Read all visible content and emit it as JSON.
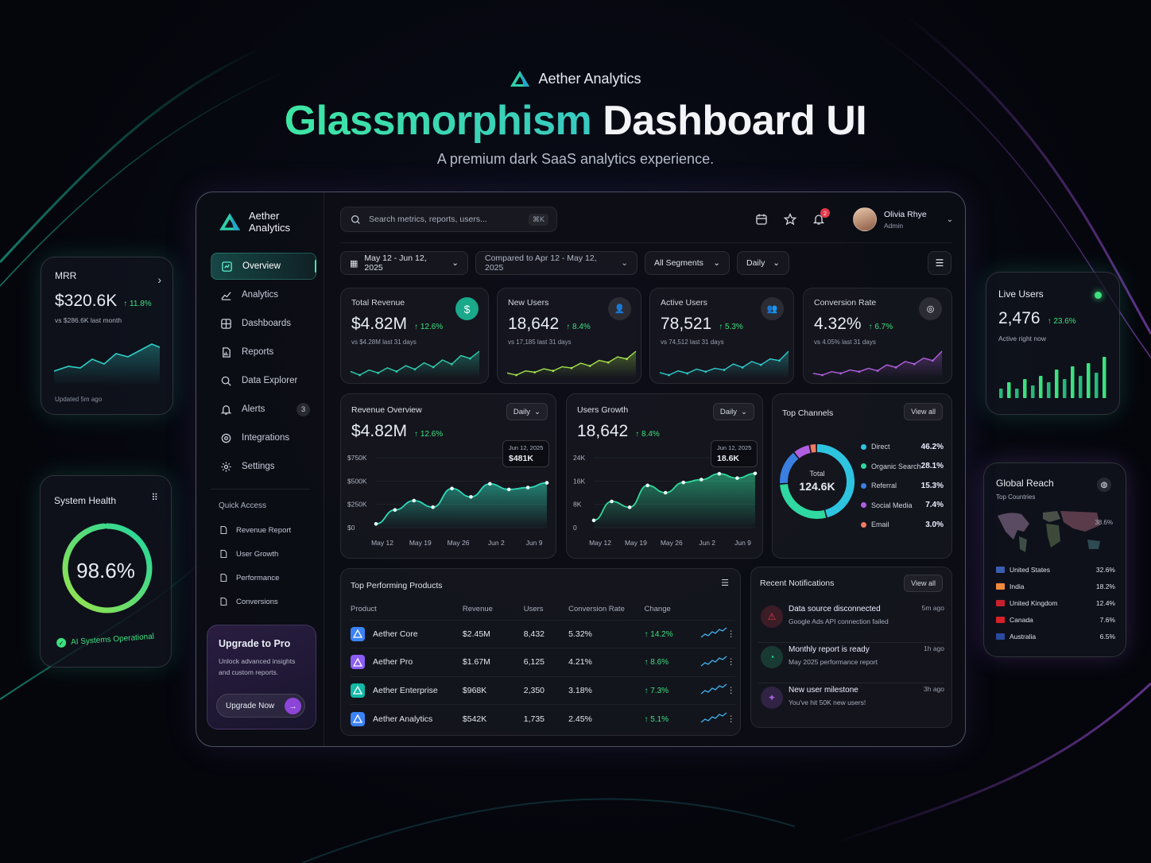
{
  "hero": {
    "brand": "Aether Analytics",
    "title_green": "Glassmorphism",
    "title_white": "Dashboard UI",
    "subtitle": "A premium dark SaaS analytics experience."
  },
  "colors": {
    "accent_green": "#3ee6a3",
    "accent_teal": "#38c9c1",
    "accent_purple": "#8d44d8",
    "positive": "#3ee07f",
    "danger": "#e23a4a"
  },
  "sidebar": {
    "brand": "Aether Analytics",
    "brand_line1": "Aether",
    "brand_line2": "Analytics",
    "items": [
      {
        "label": "Overview",
        "icon": "chart-icon",
        "active": true
      },
      {
        "label": "Analytics",
        "icon": "trend-icon"
      },
      {
        "label": "Dashboards",
        "icon": "grid-icon"
      },
      {
        "label": "Reports",
        "icon": "report-icon"
      },
      {
        "label": "Data Explorer",
        "icon": "search-icon"
      },
      {
        "label": "Alerts",
        "icon": "bell-icon",
        "badge": "3"
      },
      {
        "label": "Integrations",
        "icon": "puzzle-icon"
      },
      {
        "label": "Settings",
        "icon": "gear-icon"
      }
    ],
    "quick_access_title": "Quick Access",
    "quick_access": [
      "Revenue Report",
      "User Growth",
      "Performance",
      "Conversions"
    ],
    "upgrade": {
      "title": "Upgrade to Pro",
      "text": "Unlock advanced insights and custom reports.",
      "button": "Upgrade Now"
    }
  },
  "header": {
    "search_placeholder": "Search metrics, reports, users...",
    "shortcut": "⌘K",
    "notification_count": "2",
    "user_name": "Olivia Rhye",
    "user_role": "Admin"
  },
  "filters": {
    "date_range": "May 12 - Jun 12, 2025",
    "compare": "Compared to Apr 12 - May 12, 2025",
    "segment": "All Segments",
    "granularity": "Daily"
  },
  "kpis": [
    {
      "label": "Total Revenue",
      "value": "$4.82M",
      "change": "12.6%",
      "compare": "vs $4.28M last 31 days",
      "icon": "dollar-icon",
      "color": "#2fd0b0",
      "trend": [
        3,
        2.5,
        3.2,
        2.8,
        3.5,
        3,
        3.8,
        3.3,
        4.2,
        3.6,
        4.6,
        4,
        5.2,
        4.8,
        5.8
      ]
    },
    {
      "label": "New Users",
      "value": "18,642",
      "change": "8.4%",
      "compare": "vs 17,185 last 31 days",
      "icon": "user-icon",
      "color": "#a6e34a",
      "trend": [
        2.5,
        2.2,
        2.8,
        2.6,
        3.1,
        2.8,
        3.4,
        3.2,
        3.9,
        3.5,
        4.3,
        4,
        4.8,
        4.5,
        5.6
      ]
    },
    {
      "label": "Active Users",
      "value": "78,521",
      "change": "5.3%",
      "compare": "vs 74,512 last 31 days",
      "icon": "users-icon",
      "color": "#2fc9c9",
      "trend": [
        3,
        2.7,
        3.2,
        2.9,
        3.4,
        3.1,
        3.5,
        3.3,
        4,
        3.6,
        4.3,
        3.9,
        4.6,
        4.4,
        5.5
      ]
    },
    {
      "label": "Conversion Rate",
      "value": "4.32%",
      "change": "6.7%",
      "compare": "vs 4.05% last 31 days",
      "icon": "target-icon",
      "color": "#b25fe0",
      "trend": [
        2.8,
        2.6,
        3,
        2.8,
        3.2,
        3,
        3.4,
        3.1,
        3.8,
        3.5,
        4.2,
        3.9,
        4.6,
        4.3,
        5.4
      ]
    }
  ],
  "revenue_overview": {
    "title": "Revenue Overview",
    "value": "$4.82M",
    "change": "12.6%",
    "dropdown": "Daily",
    "tooltip_date": "Jun 12, 2025",
    "tooltip_value": "$481K",
    "y_ticks": [
      "$750K",
      "$500K",
      "$250K",
      "$0"
    ],
    "x_ticks": [
      "May 12",
      "May 19",
      "May 26",
      "Jun 2",
      "Jun 9"
    ]
  },
  "users_growth": {
    "title": "Users Growth",
    "value": "18,642",
    "change": "8.4%",
    "dropdown": "Daily",
    "tooltip_date": "Jun 12, 2025",
    "tooltip_value": "18.6K",
    "y_ticks": [
      "24K",
      "16K",
      "8K",
      "0"
    ],
    "x_ticks": [
      "May 12",
      "May 19",
      "May 26",
      "Jun 2",
      "Jun 9"
    ]
  },
  "chart_data": [
    {
      "type": "area",
      "title": "Revenue Overview",
      "x": [
        "May 12",
        "May 15",
        "May 19",
        "May 22",
        "May 26",
        "May 29",
        "Jun 2",
        "Jun 5",
        "Jun 9",
        "Jun 12"
      ],
      "values": [
        40,
        190,
        290,
        220,
        420,
        330,
        470,
        410,
        430,
        481
      ],
      "ylim": [
        0,
        750
      ],
      "ylabel": "",
      "xlabel": ""
    },
    {
      "type": "area",
      "title": "Users Growth",
      "x": [
        "May 12",
        "May 15",
        "May 19",
        "May 22",
        "May 26",
        "May 29",
        "Jun 2",
        "Jun 5",
        "Jun 9",
        "Jun 12"
      ],
      "values": [
        2.5,
        9,
        7,
        14.5,
        12,
        15.5,
        16.5,
        18.5,
        17,
        18.6
      ],
      "ylim": [
        0,
        24
      ],
      "ylabel": "",
      "xlabel": ""
    },
    {
      "type": "pie",
      "title": "Top Channels",
      "categories": [
        "Direct",
        "Organic Search",
        "Referral",
        "Social Media",
        "Email"
      ],
      "values": [
        46.2,
        28.1,
        15.3,
        7.4,
        3.0
      ]
    }
  ],
  "top_channels": {
    "title": "Top Channels",
    "view_all": "View all",
    "total_label": "Total",
    "total_value": "124.6K",
    "items": [
      {
        "name": "Direct",
        "pct": "46.2%",
        "color": "#2ec4e0"
      },
      {
        "name": "Organic Search",
        "pct": "28.1%",
        "color": "#2fd8a0"
      },
      {
        "name": "Referral",
        "pct": "15.3%",
        "color": "#3b7fe0"
      },
      {
        "name": "Social Media",
        "pct": "7.4%",
        "color": "#b05ee0"
      },
      {
        "name": "Email",
        "pct": "3.0%",
        "color": "#f07a62"
      }
    ]
  },
  "products": {
    "title": "Top Performing Products",
    "columns": [
      "Product",
      "Revenue",
      "Users",
      "Conversion Rate",
      "Change"
    ],
    "rows": [
      {
        "name": "Aether Core",
        "revenue": "$2.45M",
        "users": "8,432",
        "conv": "5.32%",
        "change": "14.2%",
        "color": "#3b82f6"
      },
      {
        "name": "Aether Pro",
        "revenue": "$1.67M",
        "users": "6,125",
        "conv": "4.21%",
        "change": "8.6%",
        "color": "#8b5cf6"
      },
      {
        "name": "Aether Enterprise",
        "revenue": "$968K",
        "users": "2,350",
        "conv": "3.18%",
        "change": "7.3%",
        "color": "#14b8a6"
      },
      {
        "name": "Aether Analytics",
        "revenue": "$542K",
        "users": "1,735",
        "conv": "2.45%",
        "change": "5.1%",
        "color": "#3b82f6"
      }
    ]
  },
  "notifications": {
    "title": "Recent Notifications",
    "view_all": "View all",
    "items": [
      {
        "title": "Data source disconnected",
        "sub": "Google Ads API connection failed",
        "time": "5m ago",
        "icon": "warning-icon",
        "color": "#e23a4a"
      },
      {
        "title": "Monthly report is ready",
        "sub": "May 2025 performance report",
        "time": "1h ago",
        "icon": "report-icon",
        "color": "#2fd08a"
      },
      {
        "title": "New user milestone",
        "sub": "You've hit 50K new users!",
        "time": "3h ago",
        "icon": "sparkle-icon",
        "color": "#a35ee0"
      }
    ]
  },
  "mrr": {
    "label": "MRR",
    "value": "$320.6K",
    "change": "11.8%",
    "compare": "vs $286.6K last month",
    "updated": "Updated 5m ago"
  },
  "system_health": {
    "label": "System Health",
    "value": "98.6%",
    "status": "AI Systems Operational",
    "level": 0.986
  },
  "live_users": {
    "label": "Live Users",
    "value": "2,476",
    "change": "23.6%",
    "sub": "Active right now",
    "bars": [
      3,
      5,
      3,
      6,
      4,
      7,
      5,
      9,
      6,
      10,
      7,
      11,
      8,
      13
    ]
  },
  "global_reach": {
    "label": "Global Reach",
    "sub": "Top Countries",
    "map_pct": "38.6%",
    "countries": [
      {
        "name": "United States",
        "pct": "32.6%"
      },
      {
        "name": "India",
        "pct": "18.2%"
      },
      {
        "name": "United Kingdom",
        "pct": "12.4%"
      },
      {
        "name": "Canada",
        "pct": "7.6%"
      },
      {
        "name": "Australia",
        "pct": "6.5%"
      }
    ]
  }
}
